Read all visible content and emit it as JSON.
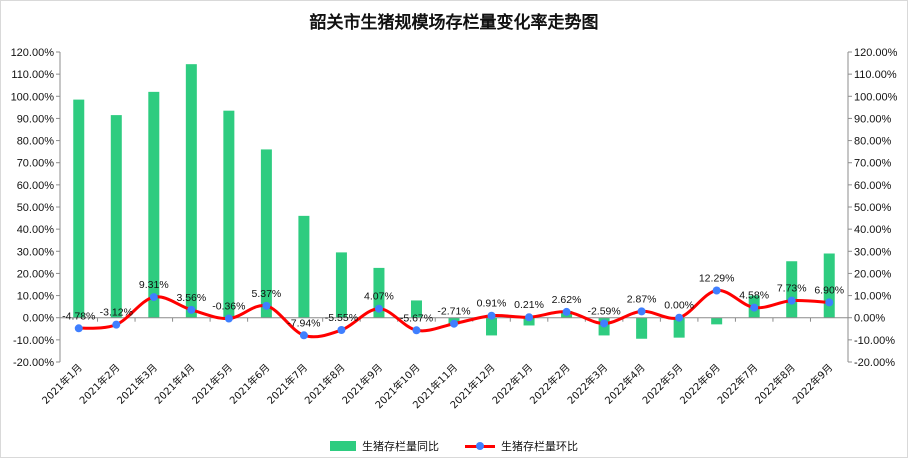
{
  "chart_data": {
    "type": "bar",
    "title": "韶关市生猪规模场存栏量变化率走势图",
    "categories": [
      "2021年1月",
      "2021年2月",
      "2021年3月",
      "2021年4月",
      "2021年5月",
      "2021年6月",
      "2021年7月",
      "2021年8月",
      "2021年9月",
      "2021年10月",
      "2021年11月",
      "2021年12月",
      "2022年1月",
      "2022年2月",
      "2022年3月",
      "2022年4月",
      "2022年5月",
      "2022年6月",
      "2022年7月",
      "2022年8月",
      "2022年9月"
    ],
    "series": [
      {
        "name": "生猪存栏量同比",
        "kind": "bar",
        "color": "#2ecc80",
        "values": [
          98.5,
          91.5,
          102.0,
          114.5,
          93.5,
          76.0,
          46.0,
          29.5,
          22.5,
          7.8,
          -3.0,
          -8.0,
          -3.5,
          3.0,
          -8.0,
          -9.5,
          -9.0,
          -3.0,
          10.0,
          25.5,
          29.0
        ]
      },
      {
        "name": "生猪存栏量环比",
        "kind": "line",
        "color": "#ff0000",
        "marker_color": "#3f7fff",
        "values": [
          -4.78,
          -3.12,
          9.31,
          3.56,
          -0.36,
          5.37,
          -7.94,
          -5.55,
          4.07,
          -5.67,
          -2.71,
          0.91,
          0.21,
          2.62,
          -2.59,
          2.87,
          0.0,
          12.29,
          4.58,
          7.73,
          6.9
        ],
        "labels": [
          "-4.78%",
          "-3.12%",
          "9.31%",
          "3.56%",
          "-0.36%",
          "5.37%",
          "-7.94%",
          "-5.55%",
          "4.07%",
          "-5.67%",
          "-2.71%",
          "0.91%",
          "0.21%",
          "2.62%",
          "-2.59%",
          "2.87%",
          "0.00%",
          "12.29%",
          "4.58%",
          "7.73%",
          "6.90%"
        ]
      }
    ],
    "ylim": [
      -20,
      120
    ],
    "ytick_step": 10,
    "ytick_labels": [
      "-20.00%",
      "-10.00%",
      "0.00%",
      "10.00%",
      "20.00%",
      "30.00%",
      "40.00%",
      "50.00%",
      "60.00%",
      "70.00%",
      "80.00%",
      "90.00%",
      "100.00%",
      "110.00%",
      "120.00%"
    ],
    "secondary_axis": true,
    "grid": false,
    "legend_position": "bottom"
  }
}
